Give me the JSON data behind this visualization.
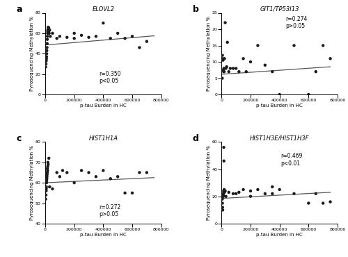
{
  "panels": {
    "a": {
      "label": "a",
      "title": "ELOVL2",
      "ylim": [
        0,
        80
      ],
      "yticks": [
        0,
        20,
        40,
        60,
        80
      ],
      "x": [
        3000,
        5000,
        7000,
        8000,
        9000,
        10000,
        11000,
        12000,
        13000,
        14000,
        15000,
        16000,
        17000,
        18000,
        19000,
        20000,
        21000,
        22000,
        23000,
        24000,
        25000,
        27000,
        30000,
        35000,
        50000,
        80000,
        100000,
        150000,
        200000,
        200000,
        250000,
        300000,
        350000,
        400000,
        450000,
        500000,
        550000,
        600000,
        650000,
        700000
      ],
      "y": [
        27,
        30,
        33,
        35,
        37,
        40,
        43,
        46,
        50,
        54,
        57,
        60,
        62,
        63,
        64,
        65,
        66,
        63,
        62,
        60,
        65,
        60,
        63,
        57,
        60,
        55,
        57,
        56,
        55,
        60,
        58,
        56,
        57,
        70,
        55,
        60,
        55,
        57,
        46,
        52
      ],
      "ann_x": 370000,
      "ann_y": 10,
      "ann_text": "r=0.350\np<0.05",
      "line_y0": 48.5,
      "line_y1": 57.5
    },
    "b": {
      "label": "b",
      "title": "GIT1/TP53I13",
      "ylim": [
        0,
        25
      ],
      "yticks": [
        0,
        5,
        10,
        15,
        20,
        25
      ],
      "x": [
        5000,
        6000,
        8000,
        10000,
        12000,
        14000,
        16000,
        18000,
        20000,
        25000,
        30000,
        35000,
        40000,
        50000,
        60000,
        80000,
        100000,
        120000,
        150000,
        170000,
        200000,
        250000,
        300000,
        350000,
        400000,
        500000,
        600000,
        650000,
        700000,
        750000
      ],
      "y": [
        5,
        12,
        11,
        10.5,
        7.5,
        7,
        8,
        7,
        11,
        22,
        8,
        8.5,
        16,
        7,
        8,
        8,
        8,
        7,
        11,
        7,
        10,
        15,
        9,
        7,
        0,
        15,
        0,
        7,
        15,
        11
      ],
      "ann_x": 440000,
      "ann_y": 20,
      "ann_text": "r=0.274\np>0.05",
      "line_y0": 6.2,
      "line_y1": 8.5
    },
    "c": {
      "label": "c",
      "title": "HIST1H1A",
      "ylim": [
        40,
        80
      ],
      "yticks": [
        40,
        50,
        60,
        70,
        80
      ],
      "x": [
        3000,
        5000,
        6000,
        7000,
        8000,
        9000,
        10000,
        11000,
        12000,
        13000,
        14000,
        15000,
        16000,
        17000,
        18000,
        20000,
        25000,
        30000,
        50000,
        80000,
        100000,
        120000,
        150000,
        200000,
        250000,
        300000,
        350000,
        400000,
        450000,
        500000,
        550000,
        600000,
        650000,
        700000
      ],
      "y": [
        52,
        54,
        56,
        57,
        58,
        60,
        61,
        62,
        63,
        64,
        65,
        67,
        66,
        68,
        70,
        69,
        72,
        58,
        57,
        65,
        63,
        66,
        65,
        60,
        66,
        65,
        63,
        66,
        62,
        63,
        55,
        55,
        65,
        65
      ],
      "ann_x": 370000,
      "ann_y": 43,
      "ann_text": "r=0.272\np>0.05",
      "line_y0": 60.0,
      "line_y1": 62.5
    },
    "d": {
      "label": "d",
      "title": "HIST1H3E/HIST1H3F",
      "ylim": [
        0,
        60
      ],
      "yticks": [
        0,
        20,
        40,
        60
      ],
      "x": [
        3000,
        5000,
        6000,
        7000,
        8000,
        9000,
        10000,
        11000,
        12000,
        13000,
        14000,
        15000,
        16000,
        18000,
        20000,
        25000,
        30000,
        50000,
        80000,
        100000,
        120000,
        150000,
        200000,
        200000,
        250000,
        300000,
        350000,
        350000,
        400000,
        500000,
        600000,
        650000,
        700000,
        750000
      ],
      "y": [
        10,
        18,
        15,
        12,
        10,
        20,
        22,
        21,
        20,
        22,
        24,
        56,
        46,
        25,
        23,
        24,
        20,
        23,
        22,
        22,
        23,
        25,
        20,
        24,
        25,
        22,
        22,
        27,
        25,
        22,
        15,
        22,
        15,
        16
      ],
      "ann_x": 410000,
      "ann_y": 42,
      "ann_text": "r=0.469\np<0.01",
      "line_y0": 18.5,
      "line_y1": 23.0
    }
  },
  "xlim": [
    0,
    800000
  ],
  "xticks": [
    0,
    200000,
    400000,
    600000,
    800000
  ],
  "xtick_labels": [
    "0",
    "200000",
    "400000",
    "600000",
    "800000"
  ],
  "xlabel": "p-tau Burden in HC",
  "ylabel": "Pyrosequencing Methylation %",
  "dot_color": "#1a1a1a",
  "line_color": "#555555",
  "dot_size": 10,
  "background_color": "#ffffff"
}
